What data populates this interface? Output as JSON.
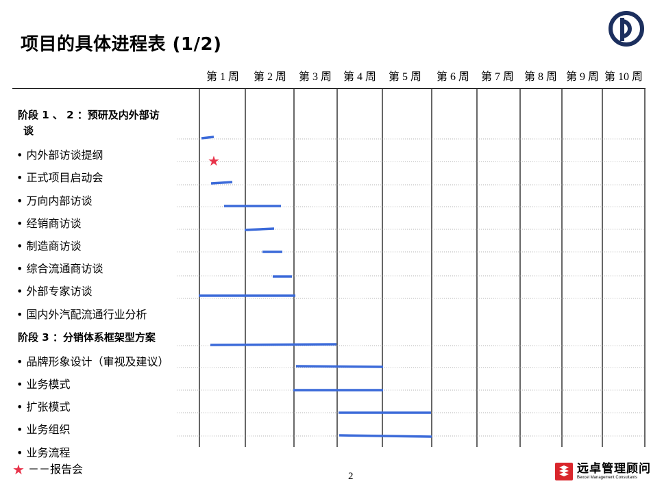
{
  "title": "项目的具体进程表 (1/2)",
  "weeks": [
    "第 1 周",
    "第 2 周",
    "第 3 周",
    "第 4 周",
    "第 5 周",
    "第 6 周",
    "第 7 周",
    "第 8 周",
    "第 9 周",
    "第 10 周"
  ],
  "phase1": {
    "label": "阶段 1 、 2 ：预研及内外部访谈"
  },
  "phase1_line1": "阶段 1 、 2 ：预研及内外部访",
  "phase1_line2": "谈",
  "tasks1": [
    "• 内外部访谈提纲",
    "• 正式项目启动会",
    "• 万向内部访谈",
    "• 经销商访谈",
    "• 制造商访谈",
    "• 综合流通商访谈",
    "• 外部专家访谈",
    "• 国内外汽配流通行业分析"
  ],
  "phase2": {
    "label": "阶段 3 ：分销体系框架型方案"
  },
  "tasks2": [
    "• 品牌形象设计（审视及建议）",
    "• 业务模式",
    "• 扩张模式",
    "• 业务组织",
    "• 业务流程"
  ],
  "legend": {
    "text": "－－报告会",
    "icon": "star-icon"
  },
  "page_number": "2",
  "footer": {
    "brand_cn": "远卓管理顾问",
    "brand_en": "Bexcel Management Consultants"
  },
  "colors": {
    "bar": "#3b6ad9",
    "star": "#e8334a",
    "logo": "#1c2f5e",
    "footer_logo": "#d9262c"
  }
}
